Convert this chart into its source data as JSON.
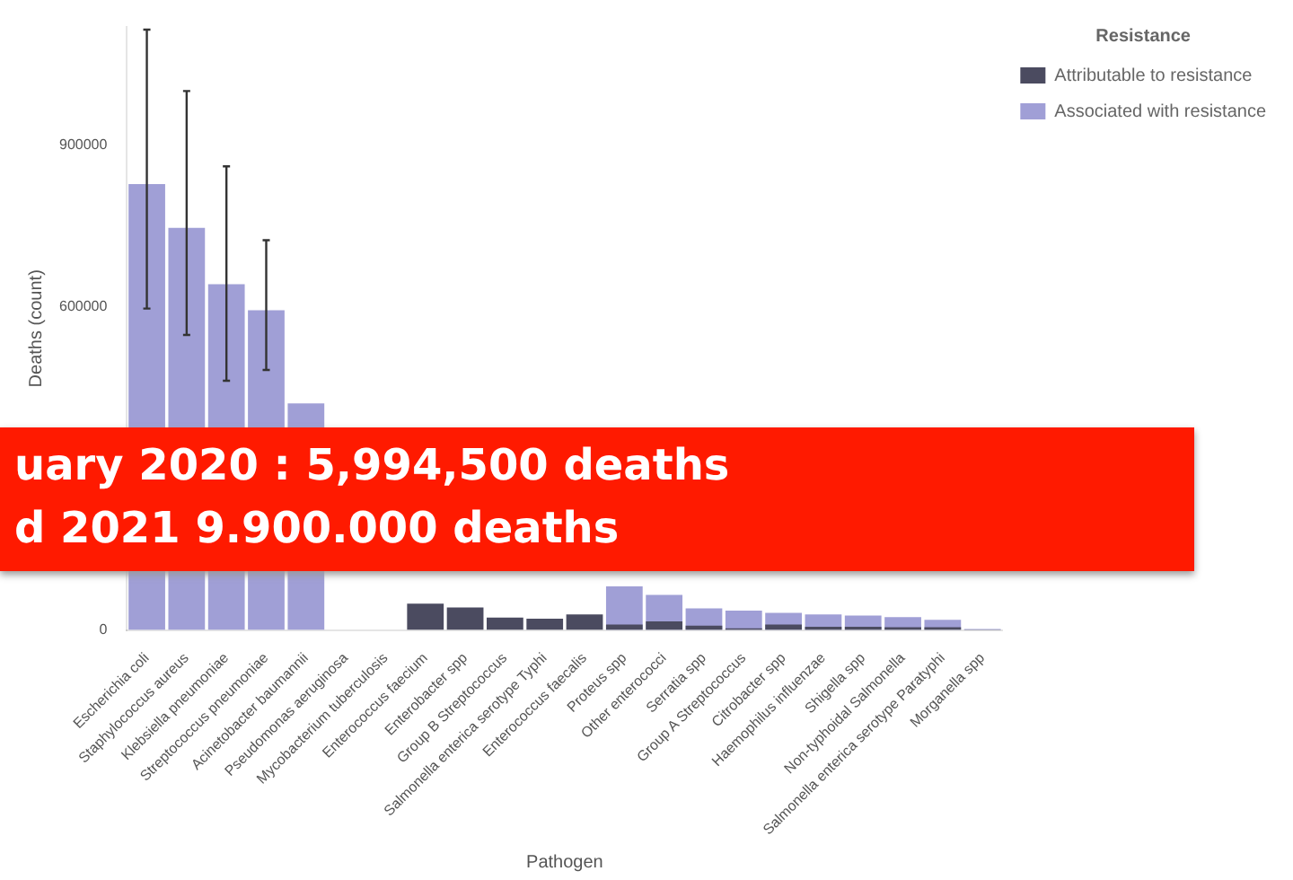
{
  "chart_data": {
    "type": "bar",
    "ylabel": "Deaths (count)",
    "xlabel": "Pathogen",
    "legend_title": "Resistance",
    "legend": "top right",
    "categories": [
      "Escherichia coli",
      "Staphylococcus aureus",
      "Klebsiella pneumoniae",
      "Streptococcus pneumoniae",
      "Acinetobacter baumannii",
      "Pseudomonas aeruginosa",
      "Mycobacterium tuberculosis",
      "Enterococcus faecium",
      "Enterobacter spp",
      "Group B Streptococcus",
      "Salmonella enterica serotype Typhi",
      "Enterococcus faecalis",
      "Proteus spp",
      "Other enterococci",
      "Serratia spp",
      "Group A Streptococcus",
      "Citrobacter spp",
      "Haemophilus influenzae",
      "Shigella spp",
      "Non-typhoidal Salmonella",
      "Salmonella enterica serotype Paratyphi",
      "Morganella spp"
    ],
    "series": [
      {
        "name": "Associated with resistance",
        "color": "#a09fd6",
        "values": [
          828000,
          747000,
          642000,
          594000,
          421000,
          null,
          null,
          null,
          null,
          null,
          null,
          null,
          81000,
          65000,
          40000,
          36000,
          32000,
          29000,
          27000,
          24000,
          19000,
          2000
        ],
        "errors": [
          [
            597000,
            1115000
          ],
          [
            548000,
            1001000
          ],
          [
            463000,
            861000
          ],
          [
            483000,
            724000
          ],
          null,
          null,
          null,
          null,
          null,
          null,
          null,
          null,
          null,
          null,
          null,
          null,
          null,
          null,
          null,
          null,
          null,
          null
        ]
      },
      {
        "name": "Attributable to resistance",
        "color": "#4b4b60",
        "values": [
          null,
          null,
          null,
          null,
          null,
          null,
          null,
          49000,
          42000,
          23000,
          21000,
          29000,
          10000,
          16000,
          8000,
          3000,
          10000,
          6000,
          6000,
          5000,
          5000,
          1000
        ]
      }
    ],
    "ylim": [
      0,
      1120000
    ],
    "yticks": [
      0,
      600000,
      900000
    ],
    "grid": false,
    "annotations": [
      "uary 2020 : 5,994,500 deaths",
      "d 2021 9.900.000 deaths"
    ]
  }
}
